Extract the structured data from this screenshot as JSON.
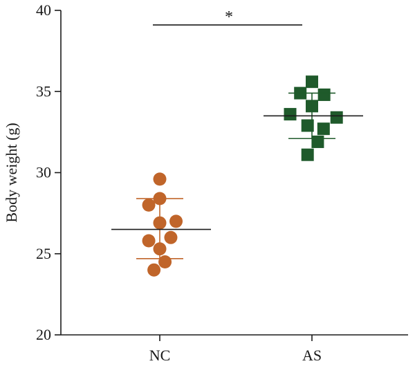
{
  "chart_data": {
    "type": "scatter",
    "title": "",
    "xlabel": "",
    "ylabel": "Body weight (g)",
    "ylim": [
      20,
      40
    ],
    "yticks": [
      20,
      25,
      30,
      35,
      40
    ],
    "categories": [
      "NC",
      "AS"
    ],
    "grid": false,
    "legend": "none",
    "series": [
      {
        "category": "NC",
        "marker": "circle",
        "color": "#c0652a",
        "mean": 26.5,
        "sd_upper": 28.4,
        "sd_lower": 24.7,
        "points": [
          {
            "offset": 0.0,
            "y": 29.6
          },
          {
            "offset": 0.0,
            "y": 28.4
          },
          {
            "offset": -0.38,
            "y": 28.0
          },
          {
            "offset": 0.56,
            "y": 27.0
          },
          {
            "offset": 0.0,
            "y": 26.9
          },
          {
            "offset": 0.38,
            "y": 26.0
          },
          {
            "offset": -0.38,
            "y": 25.8
          },
          {
            "offset": 0.0,
            "y": 25.3
          },
          {
            "offset": 0.18,
            "y": 24.5
          },
          {
            "offset": -0.2,
            "y": 24.0
          }
        ]
      },
      {
        "category": "AS",
        "marker": "square",
        "color": "#1f5a2b",
        "mean": 33.5,
        "sd_upper": 34.9,
        "sd_lower": 32.1,
        "points": [
          {
            "offset": 0.0,
            "y": 35.6
          },
          {
            "offset": -0.4,
            "y": 34.9
          },
          {
            "offset": 0.42,
            "y": 34.8
          },
          {
            "offset": 0.0,
            "y": 34.1
          },
          {
            "offset": -0.75,
            "y": 33.6
          },
          {
            "offset": 0.85,
            "y": 33.4
          },
          {
            "offset": -0.15,
            "y": 32.9
          },
          {
            "offset": 0.4,
            "y": 32.7
          },
          {
            "offset": 0.2,
            "y": 31.9
          },
          {
            "offset": -0.15,
            "y": 31.1
          }
        ]
      }
    ],
    "significance": {
      "label": "*",
      "from": "NC",
      "to": "AS",
      "y": 39.1
    }
  }
}
